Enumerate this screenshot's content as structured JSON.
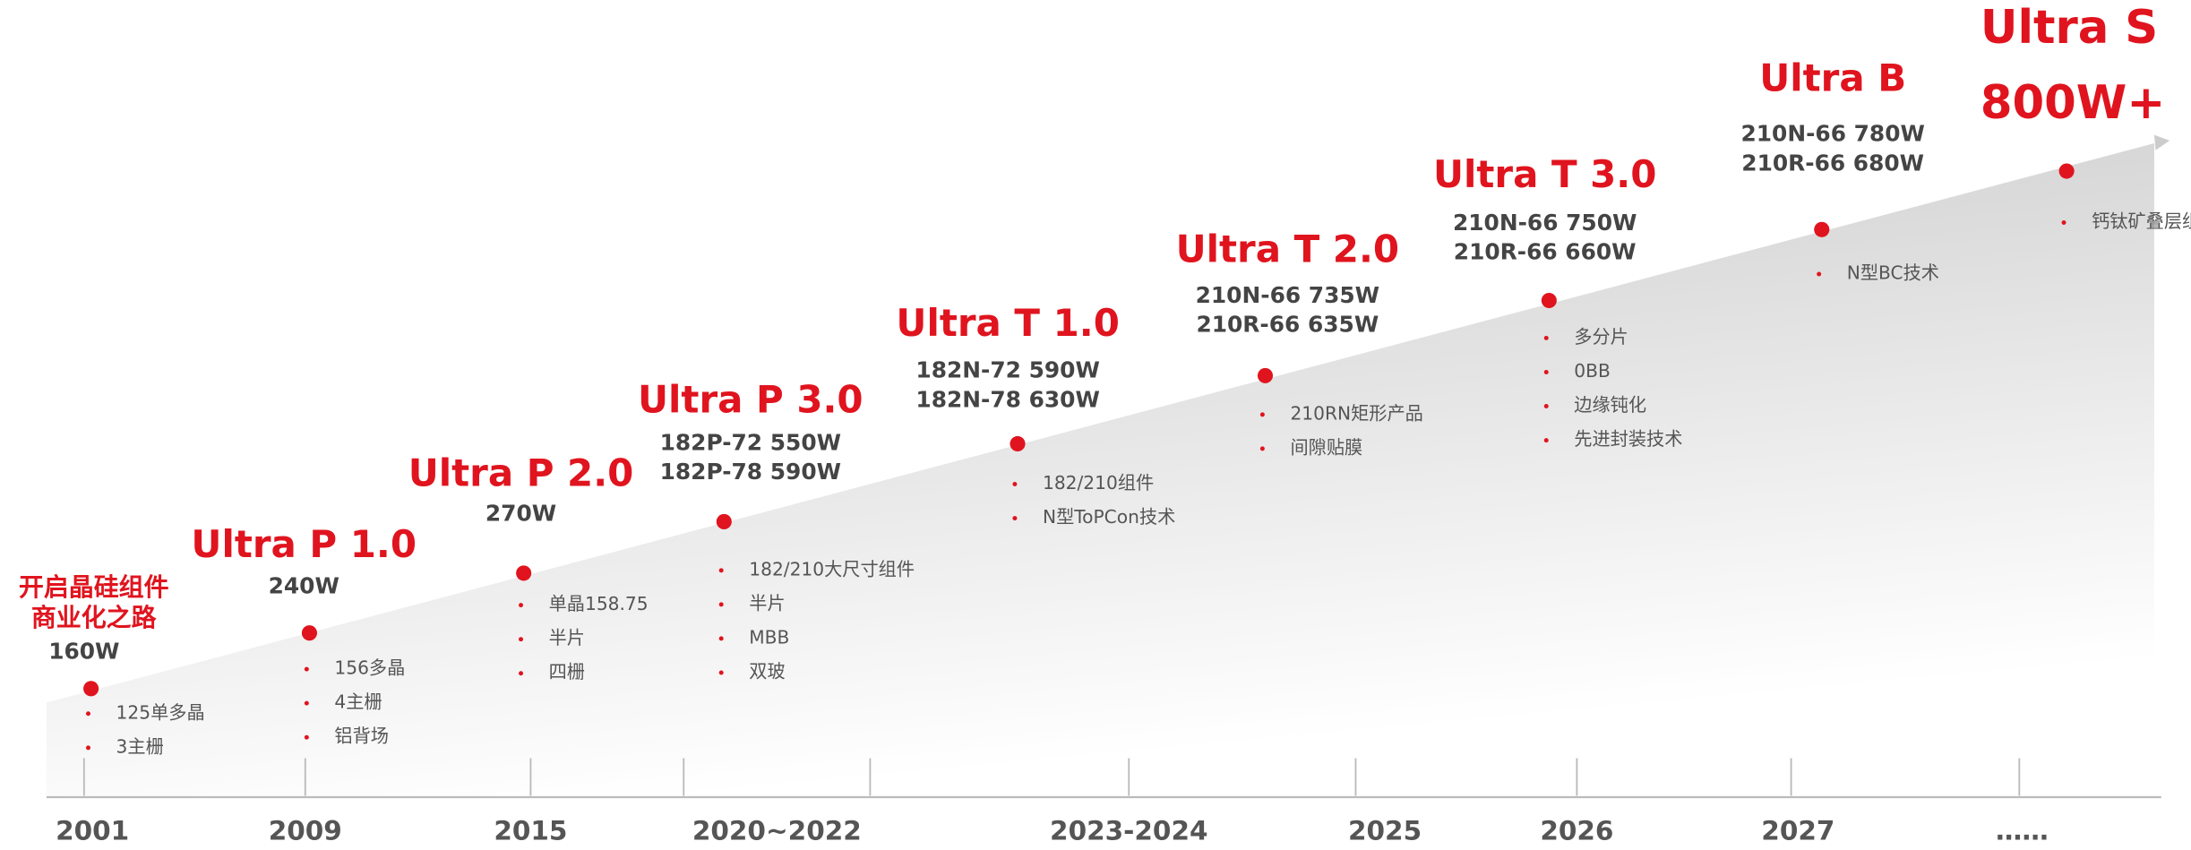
{
  "milestones": [
    {
      "title": [
        "开启晶硅组件",
        "商业化之路"
      ],
      "power": [
        "160W"
      ],
      "features": [
        "125单多晶",
        "3主栅"
      ]
    },
    {
      "title": "Ultra P 1.0",
      "power": [
        "240W"
      ],
      "features": [
        "156多晶",
        "4主栅",
        "铝背场"
      ]
    },
    {
      "title": "Ultra P 2.0",
      "power": [
        "270W"
      ],
      "features": [
        "单晶158.75",
        "半片",
        "四栅"
      ]
    },
    {
      "title": "Ultra P 3.0",
      "power": [
        "182P-72 550W",
        "182P-78 590W"
      ],
      "features": [
        "182/210大尺寸组件",
        "半片",
        "MBB",
        "双玻"
      ]
    },
    {
      "title": "Ultra T 1.0",
      "power": [
        "182N-72 590W",
        "182N-78 630W"
      ],
      "features": [
        "182/210组件",
        "N型ToPCon技术"
      ]
    },
    {
      "title": "Ultra T 2.0",
      "power": [
        "210N-66 735W",
        "210R-66 635W"
      ],
      "features": [
        "210RN矩形产品",
        "间隙贴膜"
      ]
    },
    {
      "title": "Ultra T 3.0",
      "power": [
        "210N-66 750W",
        "210R-66 660W"
      ],
      "features": [
        "多分片",
        "0BB",
        "边缘钝化",
        "先进封装技术"
      ]
    },
    {
      "title": "Ultra B",
      "power": [
        "210N-66 780W",
        "210R-66 680W"
      ],
      "features": [
        "N型BC技术"
      ]
    },
    {
      "title": "Ultra S",
      "power": [
        "800W+"
      ],
      "features": [
        "钙钛矿叠层组件"
      ]
    }
  ],
  "axis_labels": [
    "2001",
    "2009",
    "2015",
    "2020~2022",
    "2023-2024",
    "2025",
    "2026",
    "2027",
    "……"
  ]
}
